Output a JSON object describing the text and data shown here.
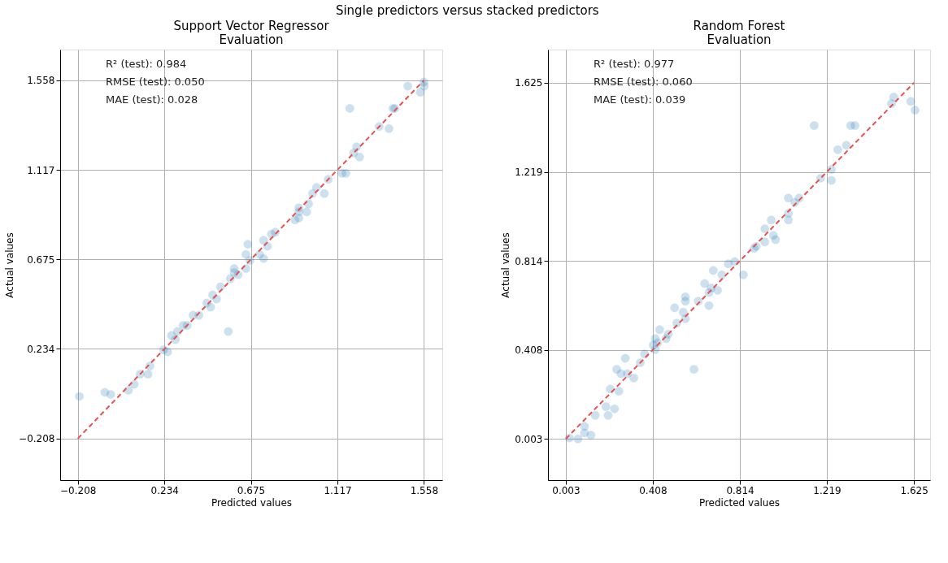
{
  "chart_data": [
    {
      "type": "scatter",
      "title": "Support Vector Regressor\nEvaluation",
      "xlabel": "Predicted values",
      "ylabel": "Actual values",
      "annotations": [
        "Single predictors versus stacked predictors",
        "R² (test): 0.984",
        "RMSE (test): 0.050",
        "MAE (test): 0.028"
      ],
      "xlim": [
        -0.298,
        1.652
      ],
      "ylim": [
        -0.413,
        1.71
      ],
      "xticks": [
        {
          "value": -0.208,
          "label": "−0.208"
        },
        0.234,
        0.675,
        1.117,
        1.558
      ],
      "yticks": [
        {
          "value": -0.208,
          "label": "−0.208"
        },
        0.234,
        0.675,
        1.117,
        1.558
      ],
      "grid": true,
      "marker": "circle",
      "series": [
        {
          "color": "#1f77b4",
          "x": [
            1.558,
            1.476,
            1.54,
            1.56,
            1.18,
            1.4,
            1.41,
            1.33,
            1.38,
            1.215,
            1.2,
            1.23,
            1.14,
            1.16,
            1.07,
            1.01,
            0.99,
            1.05,
            0.97,
            0.92,
            0.92,
            0.96,
            0.92,
            0.9,
            0.8,
            0.78,
            0.74,
            0.76,
            0.66,
            0.65,
            0.72,
            0.74,
            0.67,
            0.65,
            0.59,
            0.59,
            0.57,
            0.61,
            0.52,
            0.48,
            0.5,
            0.45,
            0.47,
            0.56,
            0.41,
            0.38,
            0.35,
            0.33,
            0.3,
            0.27,
            0.29,
            0.23,
            0.25,
            0.16,
            0.15,
            0.11,
            0.08,
            0.05,
            -0.04,
            -0.07,
            -0.2
          ],
          "values": [
            1.55,
            1.53,
            1.5,
            1.53,
            1.42,
            1.42,
            1.42,
            1.33,
            1.32,
            1.23,
            1.2,
            1.18,
            1.1,
            1.1,
            1.07,
            1.03,
            1.0,
            1.0,
            0.95,
            0.93,
            0.91,
            0.91,
            0.88,
            0.87,
            0.81,
            0.8,
            0.77,
            0.74,
            0.75,
            0.7,
            0.7,
            0.68,
            0.67,
            0.63,
            0.63,
            0.61,
            0.58,
            0.6,
            0.54,
            0.5,
            0.48,
            0.46,
            0.44,
            0.32,
            0.4,
            0.4,
            0.35,
            0.35,
            0.32,
            0.3,
            0.28,
            0.23,
            0.22,
            0.15,
            0.11,
            0.11,
            0.06,
            0.03,
            0.01,
            0.02,
            0.0
          ]
        },
        {
          "type": "line",
          "color": "#e8514f",
          "line_style": "dashed",
          "marker": "none",
          "x": [
            -0.208,
            1.558
          ],
          "values": [
            -0.208,
            1.558
          ]
        }
      ]
    },
    {
      "type": "scatter",
      "title": "Random Forest\nEvaluation",
      "xlabel": "Predicted values",
      "ylabel": "Actual values",
      "annotations": [
        "R² (test): 0.977",
        "RMSE (test): 0.060",
        "MAE (test): 0.039"
      ],
      "xlim": [
        -0.08,
        1.7
      ],
      "ylim": [
        -0.185,
        1.776
      ],
      "xticks": [
        0.003,
        0.408,
        0.814,
        1.219,
        1.625
      ],
      "yticks": [
        0.003,
        0.408,
        0.814,
        1.219,
        1.625
      ],
      "grid": true,
      "marker": "circle",
      "series": [
        {
          "color": "#1f77b4",
          "x": [
            1.53,
            1.52,
            1.61,
            1.63,
            1.16,
            1.33,
            1.35,
            1.27,
            1.31,
            1.24,
            1.19,
            1.24,
            1.04,
            1.09,
            1.07,
            1.04,
            1.04,
            0.96,
            0.93,
            0.97,
            0.98,
            0.93,
            0.89,
            0.88,
            0.79,
            0.76,
            0.69,
            0.73,
            0.83,
            0.65,
            0.68,
            0.71,
            0.67,
            0.67,
            0.62,
            0.56,
            0.56,
            0.51,
            0.55,
            0.56,
            0.52,
            0.44,
            0.48,
            0.47,
            0.42,
            0.43,
            0.42,
            0.41,
            0.37,
            0.35,
            0.6,
            0.28,
            0.24,
            0.26,
            0.29,
            0.32,
            0.21,
            0.25,
            0.19,
            0.23,
            0.2,
            0.14,
            0.09,
            0.09,
            0.12,
            0.06,
            0.02
          ],
          "values": [
            1.56,
            1.53,
            1.54,
            1.5,
            1.43,
            1.43,
            1.43,
            1.32,
            1.34,
            1.23,
            1.19,
            1.18,
            1.1,
            1.1,
            1.08,
            1.03,
            1.0,
            1.0,
            0.96,
            0.93,
            0.91,
            0.9,
            0.88,
            0.87,
            0.81,
            0.8,
            0.77,
            0.75,
            0.75,
            0.71,
            0.69,
            0.68,
            0.67,
            0.61,
            0.63,
            0.65,
            0.63,
            0.6,
            0.58,
            0.55,
            0.53,
            0.5,
            0.48,
            0.46,
            0.46,
            0.44,
            0.41,
            0.43,
            0.39,
            0.35,
            0.32,
            0.37,
            0.32,
            0.3,
            0.3,
            0.28,
            0.23,
            0.22,
            0.15,
            0.14,
            0.11,
            0.11,
            0.06,
            0.03,
            0.02,
            0.003,
            0.007
          ]
        },
        {
          "type": "line",
          "color": "#e8514f",
          "line_style": "dashed",
          "marker": "none",
          "x": [
            0.003,
            1.625
          ],
          "values": [
            0.003,
            1.625
          ]
        }
      ]
    }
  ]
}
